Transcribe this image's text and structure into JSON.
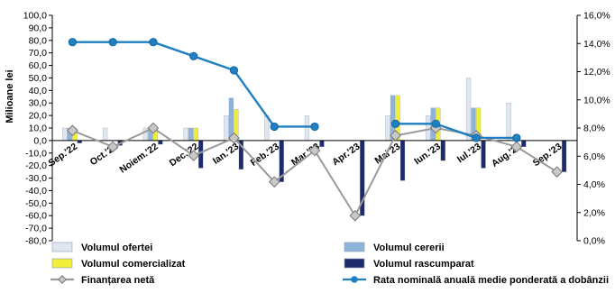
{
  "chart_data": {
    "type": "bar",
    "ylabel": "Milioane lei",
    "y_left_range": [
      -80,
      100
    ],
    "y_left_ticks": [
      "100,0",
      "90,0",
      "80,0",
      "70,0",
      "60,0",
      "50,0",
      "40,0",
      "30,0",
      "20,0",
      "10,0",
      "0,0",
      "-10,0",
      "-20,0",
      "-30,0",
      "-40,0",
      "-50,0",
      "-60,0",
      "-70,0",
      "-80,0"
    ],
    "y_right_range": [
      0,
      16
    ],
    "y_right_ticks": [
      "16,0%",
      "14,0%",
      "12,0%",
      "10,0%",
      "8,0%",
      "6,0%",
      "4,0%",
      "2,0%",
      "0,0%"
    ],
    "categories": [
      "Sep.'22",
      "Oct.'22",
      "Noiem.'22",
      "Dec.'22",
      "Ian.'23",
      "Feb.'23",
      "Mar.'23",
      "Apr.'23",
      "Mai'23",
      "Iun.'23",
      "Iul.'23",
      "Aug.'23",
      "Sep.'23"
    ],
    "series": [
      {
        "name": "Volumul ofertei",
        "kind": "bar",
        "color": "#dfe6f0",
        "values": [
          10,
          10,
          10,
          10,
          20,
          20,
          20,
          0,
          20,
          20,
          50,
          30,
          0
        ]
      },
      {
        "name": "Volumul cererii",
        "kind": "bar",
        "color": "#8fb4d9",
        "values": [
          10,
          0,
          10,
          10,
          34,
          0,
          0,
          0,
          36,
          26,
          26,
          0,
          0
        ]
      },
      {
        "name": "Volumul comercializat",
        "kind": "bar",
        "color": "#f1ee3a",
        "values": [
          10,
          0,
          10,
          10,
          25,
          0,
          0,
          0,
          36,
          26,
          26,
          0,
          0
        ]
      },
      {
        "name": "Volumul rascumparat",
        "kind": "bar",
        "color": "#1f2a6b",
        "values": [
          -2,
          -4,
          -3,
          -22,
          -23,
          -33,
          -5,
          -60,
          -32,
          -16,
          -22,
          -5,
          -25
        ]
      },
      {
        "name": "Finanțarea netă",
        "kind": "line",
        "axis": "left",
        "color": "#9a9a9a",
        "values": [
          8,
          -5,
          10,
          -12,
          2,
          -33,
          -8,
          -60,
          4,
          10,
          4,
          -5,
          -25
        ]
      },
      {
        "name": "Rata nominală anuală medie ponderată a dobânzii",
        "kind": "line",
        "axis": "right",
        "color": "#1f7fc0",
        "values": [
          14.1,
          14.1,
          14.1,
          13.1,
          12.1,
          8.1,
          8.1,
          null,
          8.3,
          8.3,
          7.3,
          7.3,
          null
        ]
      }
    ],
    "legend_position": "bottom",
    "grid": false
  }
}
